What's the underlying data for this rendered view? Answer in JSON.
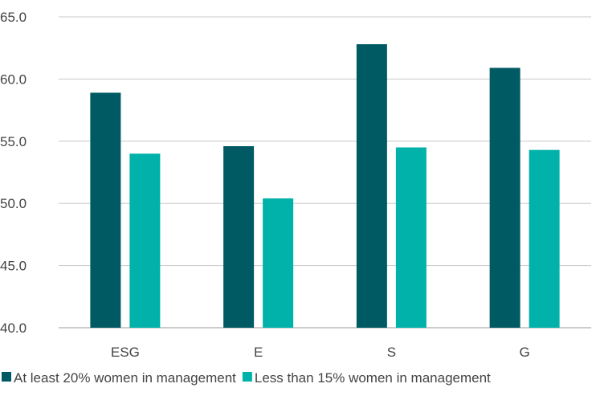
{
  "chart_data": {
    "type": "bar",
    "title": "",
    "xlabel": "",
    "ylabel": "",
    "categories": [
      "ESG",
      "E",
      "S",
      "G"
    ],
    "series": [
      {
        "name": "At least 20% women in management",
        "color": "#005a64",
        "values": [
          58.9,
          54.6,
          62.8,
          60.9
        ]
      },
      {
        "name": "Less than 15% women in management",
        "color": "#00b2a9",
        "values": [
          54.0,
          50.4,
          54.5,
          54.3
        ]
      }
    ],
    "ylim": [
      40,
      65
    ],
    "yticks": [
      "40.0",
      "45.0",
      "50.0",
      "55.0",
      "60.0",
      "65.0"
    ],
    "grid": true,
    "legend_position": "bottom"
  }
}
